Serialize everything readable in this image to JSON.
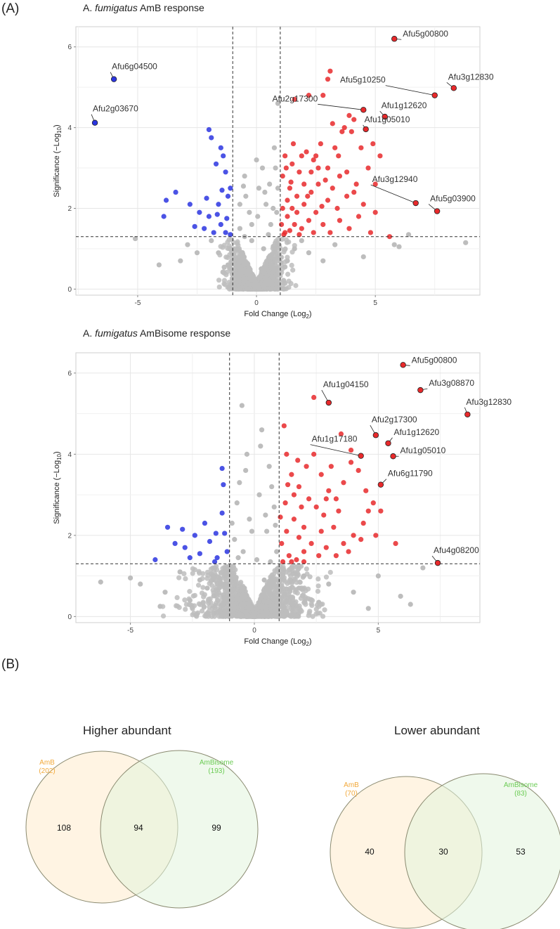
{
  "panel_labels": {
    "a": "(A)",
    "b": "(B)"
  },
  "colors": {
    "up": "#e8292b",
    "down": "#2b35e0",
    "ns": "#bdbdbd",
    "amb": "#f2a93b",
    "ambisome": "#6ccc55"
  },
  "chart_data": [
    {
      "type": "scatter",
      "title_prefix": "A. ",
      "title_italic": "fumigatus",
      "title_suffix": " AmB response",
      "xlabel": "Fold Change (Log",
      "xlabel_sub": "2",
      "xlabel_end": ")",
      "ylabel": "Significance (−Log",
      "ylabel_sub": "10",
      "ylabel_end": ")",
      "xlim": [
        -7.6,
        9.4
      ],
      "ylim": [
        -0.15,
        6.5
      ],
      "xticks": [
        -5,
        0,
        5
      ],
      "xtick_labels": [
        "-5",
        "0",
        "5"
      ],
      "yticks": [
        0,
        2,
        4,
        6
      ],
      "ytick_labels": [
        "0",
        "2",
        "4",
        "6"
      ],
      "fc_threshold": [
        -1,
        1
      ],
      "p_threshold": 1.3,
      "labeled_genes": [
        {
          "name": "Afu5g00800",
          "x": 5.8,
          "y": 6.2,
          "group": "up"
        },
        {
          "name": "Afu3g12830",
          "x": 8.3,
          "y": 4.98,
          "group": "up"
        },
        {
          "name": "Afu5g10250",
          "x": 7.5,
          "y": 4.8,
          "group": "up"
        },
        {
          "name": "Afu1g12620",
          "x": 5.4,
          "y": 4.27,
          "group": "up"
        },
        {
          "name": "Afu2g17300",
          "x": 4.5,
          "y": 4.44,
          "group": "up"
        },
        {
          "name": "Afu1g05010",
          "x": 4.6,
          "y": 3.96,
          "group": "up"
        },
        {
          "name": "Afu3g12940",
          "x": 6.7,
          "y": 2.13,
          "group": "up"
        },
        {
          "name": "Afu5g03900",
          "x": 7.6,
          "y": 1.93,
          "group": "up"
        },
        {
          "name": "Afu6g04500",
          "x": -6.0,
          "y": 5.2,
          "group": "down"
        },
        {
          "name": "Afu2g03670",
          "x": -6.8,
          "y": 4.12,
          "group": "down"
        }
      ],
      "up_points": [
        [
          1.2,
          3.3
        ],
        [
          1.5,
          3.1
        ],
        [
          1.8,
          2.9
        ],
        [
          2.1,
          3.4
        ],
        [
          2.4,
          3.2
        ],
        [
          2.7,
          3.6
        ],
        [
          3.0,
          3.0
        ],
        [
          3.3,
          3.5
        ],
        [
          1.6,
          4.7
        ],
        [
          2.2,
          4.8
        ],
        [
          2.8,
          4.8
        ],
        [
          3.1,
          5.4
        ],
        [
          3.0,
          5.2
        ],
        [
          3.2,
          4.1
        ],
        [
          3.6,
          3.9
        ],
        [
          4.0,
          3.9
        ],
        [
          4.4,
          3.5
        ],
        [
          4.9,
          3.6
        ],
        [
          5.2,
          3.3
        ],
        [
          4.7,
          3.0
        ],
        [
          5.0,
          2.6
        ],
        [
          4.2,
          2.6
        ],
        [
          3.8,
          2.3
        ],
        [
          3.4,
          2.0
        ],
        [
          3.0,
          2.2
        ],
        [
          2.6,
          2.6
        ],
        [
          2.3,
          2.4
        ],
        [
          2.0,
          2.1
        ],
        [
          1.7,
          2.3
        ],
        [
          1.4,
          2.5
        ],
        [
          1.1,
          2.0
        ],
        [
          1.3,
          1.8
        ],
        [
          1.6,
          1.6
        ],
        [
          1.9,
          1.5
        ],
        [
          2.2,
          1.7
        ],
        [
          2.5,
          1.9
        ],
        [
          2.8,
          1.6
        ],
        [
          3.1,
          1.4
        ],
        [
          3.5,
          1.7
        ],
        [
          3.9,
          1.5
        ],
        [
          4.3,
          1.8
        ],
        [
          4.8,
          1.4
        ],
        [
          5.6,
          1.3
        ],
        [
          1.2,
          1.4
        ],
        [
          1.05,
          1.6
        ],
        [
          1.1,
          2.8
        ],
        [
          1.3,
          2.2
        ],
        [
          1.5,
          2.0
        ],
        [
          1.7,
          1.9
        ],
        [
          2.0,
          2.6
        ],
        [
          2.3,
          2.9
        ],
        [
          2.6,
          3.0
        ],
        [
          2.9,
          2.7
        ],
        [
          3.2,
          2.5
        ],
        [
          3.5,
          2.8
        ],
        [
          3.8,
          2.9
        ],
        [
          4.1,
          2.4
        ],
        [
          4.5,
          2.1
        ],
        [
          5.0,
          1.9
        ],
        [
          1.15,
          1.35
        ],
        [
          1.4,
          1.45
        ],
        [
          1.8,
          1.35
        ],
        [
          2.4,
          1.4
        ],
        [
          1.25,
          3.0
        ],
        [
          1.9,
          3.3
        ],
        [
          2.5,
          3.3
        ],
        [
          4.1,
          4.2
        ],
        [
          3.7,
          4.0
        ],
        [
          3.9,
          4.3
        ],
        [
          1.45,
          2.65
        ],
        [
          2.15,
          2.3
        ],
        [
          2.75,
          2.05
        ],
        [
          1.55,
          3.6
        ],
        [
          3.45,
          3.3
        ]
      ],
      "down_points": [
        [
          -2.0,
          3.95
        ],
        [
          -1.9,
          3.75
        ],
        [
          -1.5,
          3.5
        ],
        [
          -1.4,
          3.3
        ],
        [
          -1.7,
          3.1
        ],
        [
          -1.3,
          2.9
        ],
        [
          -3.8,
          2.2
        ],
        [
          -3.4,
          2.4
        ],
        [
          -2.8,
          2.1
        ],
        [
          -2.4,
          1.9
        ],
        [
          -2.0,
          1.8
        ],
        [
          -1.6,
          2.1
        ],
        [
          -1.2,
          2.3
        ],
        [
          -1.1,
          2.5
        ],
        [
          -1.5,
          1.6
        ],
        [
          -1.8,
          1.4
        ],
        [
          -2.2,
          1.5
        ],
        [
          -2.6,
          1.55
        ],
        [
          -1.3,
          1.4
        ],
        [
          -1.1,
          1.35
        ],
        [
          -3.9,
          1.8
        ],
        [
          -1.25,
          1.75
        ],
        [
          -1.65,
          1.85
        ],
        [
          -2.1,
          2.25
        ],
        [
          -1.45,
          2.45
        ]
      ],
      "ns_points": [
        [
          -0.2,
          1.2
        ],
        [
          0.3,
          1.0
        ],
        [
          0.6,
          0.8
        ],
        [
          -0.6,
          0.9
        ],
        [
          0.9,
          1.1
        ],
        [
          -0.8,
          1.0
        ],
        [
          0.2,
          0.5
        ],
        [
          -0.4,
          0.4
        ],
        [
          0.7,
          0.3
        ],
        [
          -0.9,
          0.6
        ],
        [
          1.6,
          1.0
        ],
        [
          2.2,
          0.9
        ],
        [
          -2.5,
          0.9
        ],
        [
          -3.2,
          0.7
        ],
        [
          -4.1,
          0.6
        ],
        [
          -5.1,
          1.25
        ],
        [
          4.5,
          0.8
        ],
        [
          5.8,
          1.1
        ],
        [
          6.4,
          1.35
        ],
        [
          8.8,
          1.15
        ],
        [
          6.0,
          1.05
        ],
        [
          -0.5,
          2.8
        ],
        [
          0.0,
          3.2
        ],
        [
          0.4,
          2.1
        ],
        [
          0.8,
          3.0
        ],
        [
          -0.3,
          1.9
        ],
        [
          0.9,
          4.6
        ],
        [
          0.1,
          2.5
        ],
        [
          0.6,
          1.6
        ],
        [
          -0.7,
          1.5
        ],
        [
          0.9,
          2.5
        ],
        [
          -0.1,
          0.1
        ],
        [
          0.5,
          1.35
        ],
        [
          -0.5,
          1.3
        ],
        [
          1.3,
          0.7
        ],
        [
          -1.2,
          0.6
        ],
        [
          -1.6,
          0.9
        ],
        [
          2.8,
          0.7
        ],
        [
          3.3,
          1.1
        ],
        [
          -2.9,
          1.1
        ],
        [
          1.9,
          1.2
        ],
        [
          -1.9,
          1.2
        ],
        [
          0.75,
          3.5
        ],
        [
          -0.45,
          2.3
        ],
        [
          0.25,
          3.0
        ],
        [
          0.7,
          2.0
        ],
        [
          -0.2,
          1.6
        ],
        [
          0.55,
          2.6
        ],
        [
          0.05,
          1.8
        ],
        [
          -0.55,
          2.55
        ],
        [
          -0.7,
          2.1
        ],
        [
          0.35,
          2.4
        ],
        [
          0.85,
          1.9
        ]
      ]
    },
    {
      "type": "scatter",
      "title_prefix": "A. ",
      "title_italic": "fumigatus",
      "title_suffix": " AmBisome response",
      "xlabel": "Fold Change (Log",
      "xlabel_sub": "2",
      "xlabel_end": ")",
      "ylabel": "Significance (−Log",
      "ylabel_sub": "10",
      "ylabel_end": ")",
      "xlim": [
        -7.2,
        9.1
      ],
      "ylim": [
        -0.15,
        6.5
      ],
      "xticks": [
        -5,
        0,
        5
      ],
      "xtick_labels": [
        "-5",
        "0",
        "5"
      ],
      "yticks": [
        0,
        2,
        4,
        6
      ],
      "ytick_labels": [
        "0",
        "2",
        "4",
        "6"
      ],
      "fc_threshold": [
        -1,
        1
      ],
      "p_threshold": 1.3,
      "labeled_genes": [
        {
          "name": "Afu5g00800",
          "x": 6.0,
          "y": 6.2,
          "group": "up"
        },
        {
          "name": "Afu3g08870",
          "x": 6.7,
          "y": 5.58,
          "group": "up"
        },
        {
          "name": "Afu3g12830",
          "x": 8.6,
          "y": 4.98,
          "group": "up"
        },
        {
          "name": "Afu1g04150",
          "x": 3.0,
          "y": 5.27,
          "group": "up"
        },
        {
          "name": "Afu2g17300",
          "x": 4.9,
          "y": 4.47,
          "group": "up"
        },
        {
          "name": "Afu1g12620",
          "x": 5.4,
          "y": 4.27,
          "group": "up"
        },
        {
          "name": "Afu1g17180",
          "x": 4.3,
          "y": 3.96,
          "group": "up"
        },
        {
          "name": "Afu1g05010",
          "x": 5.6,
          "y": 3.95,
          "group": "up"
        },
        {
          "name": "Afu6g11790",
          "x": 5.1,
          "y": 3.25,
          "group": "up"
        },
        {
          "name": "Afu4g08200",
          "x": 7.4,
          "y": 1.32,
          "group": "up"
        }
      ],
      "up_points": [
        [
          1.2,
          4.7
        ],
        [
          1.3,
          4.0
        ],
        [
          1.5,
          3.5
        ],
        [
          1.8,
          3.2
        ],
        [
          2.1,
          3.7
        ],
        [
          2.4,
          4.0
        ],
        [
          2.7,
          3.5
        ],
        [
          3.0,
          3.1
        ],
        [
          3.3,
          2.9
        ],
        [
          3.6,
          3.3
        ],
        [
          3.9,
          3.8
        ],
        [
          4.2,
          3.6
        ],
        [
          4.5,
          3.1
        ],
        [
          4.8,
          2.8
        ],
        [
          5.1,
          2.6
        ],
        [
          4.4,
          2.3
        ],
        [
          4.0,
          2.0
        ],
        [
          3.6,
          1.8
        ],
        [
          3.2,
          2.2
        ],
        [
          2.8,
          2.5
        ],
        [
          2.5,
          2.7
        ],
        [
          2.2,
          2.9
        ],
        [
          1.9,
          2.7
        ],
        [
          1.6,
          2.4
        ],
        [
          1.3,
          2.1
        ],
        [
          1.1,
          1.8
        ],
        [
          1.4,
          1.5
        ],
        [
          1.7,
          1.4
        ],
        [
          2.0,
          1.6
        ],
        [
          2.3,
          1.8
        ],
        [
          2.6,
          1.5
        ],
        [
          2.9,
          1.7
        ],
        [
          3.3,
          1.5
        ],
        [
          3.8,
          1.6
        ],
        [
          4.3,
          1.9
        ],
        [
          4.9,
          2.0
        ],
        [
          5.7,
          1.8
        ],
        [
          1.15,
          1.35
        ],
        [
          1.5,
          1.35
        ],
        [
          2.0,
          1.35
        ],
        [
          2.4,
          5.4
        ],
        [
          3.9,
          4.1
        ],
        [
          3.5,
          4.5
        ],
        [
          2.0,
          2.2
        ],
        [
          1.25,
          2.8
        ],
        [
          1.6,
          3.0
        ],
        [
          2.9,
          2.9
        ],
        [
          3.4,
          2.6
        ],
        [
          1.05,
          2.45
        ],
        [
          1.35,
          3.25
        ],
        [
          1.8,
          1.95
        ],
        [
          2.7,
          2.1
        ],
        [
          4.6,
          2.6
        ],
        [
          1.75,
          3.85
        ],
        [
          3.1,
          3.7
        ]
      ],
      "down_points": [
        [
          -1.3,
          3.65
        ],
        [
          -1.25,
          3.25
        ],
        [
          -1.3,
          2.55
        ],
        [
          -1.2,
          2.05
        ],
        [
          -1.1,
          1.6
        ],
        [
          -1.5,
          1.45
        ],
        [
          -3.5,
          2.2
        ],
        [
          -2.9,
          2.15
        ],
        [
          -2.4,
          2.0
        ],
        [
          -2.0,
          2.3
        ],
        [
          -1.8,
          1.85
        ],
        [
          -2.2,
          1.55
        ],
        [
          -2.8,
          1.7
        ],
        [
          -1.6,
          1.35
        ],
        [
          -4.0,
          1.4
        ],
        [
          -3.2,
          1.8
        ],
        [
          -1.55,
          2.05
        ],
        [
          -2.6,
          1.45
        ]
      ],
      "ns_points": [
        [
          -0.5,
          5.2
        ],
        [
          0.3,
          4.6
        ],
        [
          -0.3,
          4.0
        ],
        [
          0.6,
          3.7
        ],
        [
          -0.6,
          3.3
        ],
        [
          0.2,
          3.0
        ],
        [
          0.8,
          2.7
        ],
        [
          -0.2,
          2.4
        ],
        [
          0.5,
          2.1
        ],
        [
          -0.8,
          1.9
        ],
        [
          0.9,
          1.6
        ],
        [
          -6.2,
          0.85
        ],
        [
          -5.0,
          0.95
        ],
        [
          -4.6,
          0.8
        ],
        [
          -3.6,
          0.6
        ],
        [
          -3.0,
          1.1
        ],
        [
          -2.2,
          0.9
        ],
        [
          -1.6,
          1.2
        ],
        [
          2.0,
          1.0
        ],
        [
          3.0,
          0.8
        ],
        [
          4.0,
          0.6
        ],
        [
          5.0,
          1.0
        ],
        [
          5.9,
          0.5
        ],
        [
          6.3,
          0.3
        ],
        [
          6.8,
          1.2
        ],
        [
          1.5,
          0.3
        ],
        [
          -1.0,
          0.4
        ],
        [
          0.0,
          0.1
        ],
        [
          -0.4,
          0.7
        ],
        [
          0.4,
          0.9
        ],
        [
          -3.8,
          0.25
        ],
        [
          4.6,
          0.2
        ],
        [
          -2.6,
          0.4
        ],
        [
          2.6,
          0.35
        ],
        [
          -1.9,
          0.7
        ],
        [
          1.8,
          0.7
        ],
        [
          0.7,
          3.2
        ],
        [
          -0.7,
          2.8
        ],
        [
          0.1,
          1.4
        ],
        [
          -0.1,
          2.1
        ],
        [
          0.45,
          2.5
        ],
        [
          -0.45,
          1.6
        ],
        [
          0.85,
          2.25
        ],
        [
          -0.9,
          2.3
        ],
        [
          0.65,
          1.35
        ],
        [
          -0.65,
          1.45
        ],
        [
          0.25,
          4.2
        ],
        [
          -0.35,
          3.6
        ]
      ]
    }
  ],
  "venn": [
    {
      "title": "Higher abundant",
      "left_name": "AmB",
      "left_total": "(202)",
      "right_name": "AmBisome",
      "right_total": "(193)",
      "left_only": "108",
      "both": "94",
      "right_only": "99"
    },
    {
      "title": "Lower abundant",
      "left_name": "AmB",
      "left_total": "(70)",
      "right_name": "AmBisome",
      "right_total": "(83)",
      "left_only": "40",
      "both": "30",
      "right_only": "53"
    }
  ]
}
